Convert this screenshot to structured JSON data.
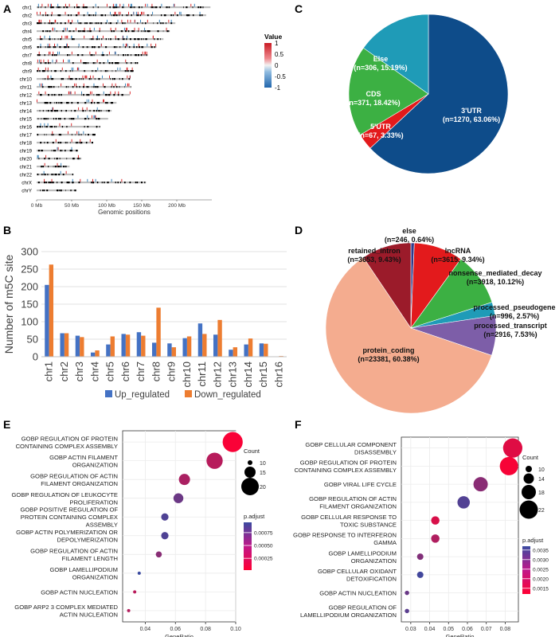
{
  "panels": {
    "a": "A",
    "b": "B",
    "c": "C",
    "d": "D",
    "e": "E",
    "f": "F"
  },
  "chart_data": [
    {
      "panel": "A",
      "type": "heatmap",
      "subtype": "chromosome_ideogram",
      "chromosomes": [
        "chr1",
        "chr2",
        "chr3",
        "chr4",
        "chr5",
        "chr6",
        "chr7",
        "chr8",
        "chr9",
        "chr10",
        "chr11",
        "chr12",
        "chr13",
        "chr14",
        "chr15",
        "chr16",
        "chr17",
        "chr18",
        "chr19",
        "chr20",
        "chr21",
        "chr22",
        "chrX",
        "chrY"
      ],
      "lengths_mb": [
        248,
        242,
        198,
        190,
        181,
        171,
        159,
        145,
        138,
        134,
        135,
        133,
        114,
        107,
        102,
        90,
        83,
        80,
        59,
        64,
        47,
        51,
        156,
        57
      ],
      "x_ticks": [
        "0 Mb",
        "50 Mb",
        "100 Mb",
        "150 Mb",
        "200 Mb"
      ],
      "x_tick_values": [
        0,
        50,
        100,
        150,
        200
      ],
      "xlim": [
        0,
        250
      ],
      "xlabel": "Genomic positions",
      "legend_title": "Value",
      "legend_ticks": [
        "1",
        "0.5",
        "0",
        "-0.5",
        "-1"
      ],
      "legend_tick_values": [
        1,
        0.5,
        0,
        -0.5,
        -1
      ],
      "colors": {
        "up": "#d7191c",
        "down": "#2c7bb6",
        "band": "#000000"
      }
    },
    {
      "panel": "B",
      "type": "bar",
      "categories": [
        "chr1",
        "chr2",
        "chr3",
        "chr4",
        "chr5",
        "chr6",
        "chr7",
        "chr8",
        "chr9",
        "chr10",
        "chr11",
        "chr12",
        "chr13",
        "chr14",
        "chr15",
        "chr16"
      ],
      "series": [
        {
          "name": "Up_regulated",
          "color": "#4472c4",
          "values": [
            205,
            67,
            60,
            12,
            35,
            65,
            70,
            40,
            38,
            53,
            95,
            63,
            20,
            35,
            38,
            0
          ]
        },
        {
          "name": "Down_regulated",
          "color": "#ed7d31",
          "values": [
            263,
            67,
            56,
            18,
            58,
            63,
            60,
            140,
            27,
            58,
            65,
            105,
            27,
            52,
            37,
            2
          ]
        }
      ],
      "ylabel": "Number of m5C site",
      "ylim": [
        0,
        300
      ],
      "yticks": [
        0,
        50,
        100,
        150,
        200,
        250,
        300
      ],
      "ytick_labels": [
        "0",
        "50",
        "100",
        "150",
        "200",
        "250",
        "300"
      ],
      "legend": "bottom"
    },
    {
      "panel": "C",
      "type": "pie",
      "slices": [
        {
          "label": "3'UTR",
          "count": "(n=1270, 63.06%)",
          "value": 63.06,
          "color": "#0e4c8a"
        },
        {
          "label": "5'UTR",
          "count": "(n=67, 3.33%)",
          "value": 3.33,
          "color": "#e31a1c"
        },
        {
          "label": "CDS",
          "count": "(n=371, 18.42%)",
          "value": 18.42,
          "color": "#3cb043"
        },
        {
          "label": "Else",
          "count": "(n=306, 15.19%)",
          "value": 15.19,
          "color": "#1f9bb7"
        }
      ]
    },
    {
      "panel": "D",
      "type": "pie",
      "slices": [
        {
          "label": "else",
          "count": "(n=246, 0.64%)",
          "value": 0.64,
          "color": "#2d3a8c"
        },
        {
          "label": "lncRNA",
          "count": "(n=3615, 9.34%)",
          "value": 9.34,
          "color": "#e31a1c"
        },
        {
          "label": "nonsense_mediated_decay",
          "count": "(n=3918, 10.12%)",
          "value": 10.12,
          "color": "#3cb043"
        },
        {
          "label": "processed_pseudogene",
          "count": "(n=996, 2.57%)",
          "value": 2.57,
          "color": "#1f9bb7"
        },
        {
          "label": "processed_transcript",
          "count": "(n=2916, 7.53%)",
          "value": 7.53,
          "color": "#7d5ea8"
        },
        {
          "label": "protein_coding",
          "count": "(n=23381, 60.38%)",
          "value": 60.38,
          "color": "#f4ac8f"
        },
        {
          "label": "retained_intron",
          "count": "(n=3653, 9.43%)",
          "value": 9.43,
          "color": "#9b1b2a"
        }
      ]
    },
    {
      "panel": "E",
      "type": "scatter",
      "subtype": "dotplot",
      "terms": [
        {
          "label": [
            "GOBP REGULATION OF PROTEIN",
            "CONTAINING COMPLEX ASSEMBLY"
          ],
          "ratio": 0.098,
          "count": 22,
          "padj": 5e-05
        },
        {
          "label": [
            "GOBP ACTIN FILAMENT",
            "ORGANIZATION"
          ],
          "ratio": 0.086,
          "count": 19,
          "padj": 0.00036
        },
        {
          "label": [
            "GOBP REGULATION OF ACTIN",
            "FILAMENT ORGANIZATION"
          ],
          "ratio": 0.066,
          "count": 15,
          "padj": 0.00042
        },
        {
          "label": [
            "GOBP REGULATION OF LEUKOCYTE",
            "PROLIFERATION"
          ],
          "ratio": 0.062,
          "count": 14,
          "padj": 0.00072
        },
        {
          "label": [
            "GOBP POSITIVE REGULATION OF",
            "PROTEIN CONTAINING COMPLEX",
            "ASSEMBLY"
          ],
          "ratio": 0.053,
          "count": 12,
          "padj": 0.00085
        },
        {
          "label": [
            "GOBP ACTIN POLYMERIZATION OR",
            "DEPOLYMERIZATION"
          ],
          "ratio": 0.053,
          "count": 12,
          "padj": 0.00085
        },
        {
          "label": [
            "GOBP REGULATION OF ACTIN",
            "FILAMENT LENGTH"
          ],
          "ratio": 0.049,
          "count": 11,
          "padj": 0.00058
        },
        {
          "label": [
            "GOBP LAMELLIPODIUM",
            "ORGANIZATION"
          ],
          "ratio": 0.036,
          "count": 8,
          "padj": 0.00095
        },
        {
          "label": [
            "GOBP ACTIN NUCLEATION"
          ],
          "ratio": 0.033,
          "count": 7,
          "padj": 0.00035
        },
        {
          "label": [
            "GOBP ARP2 3 COMPLEX MEDIATED",
            "ACTIN NUCLEATION"
          ],
          "ratio": 0.029,
          "count": 6,
          "padj": 0.00038
        }
      ],
      "xlabel": "GeneRatio",
      "xlim": [
        0.025,
        0.1
      ],
      "xticks": [
        0.04,
        0.06,
        0.08,
        0.1
      ],
      "xtick_labels": [
        "0.04",
        "0.06",
        "0.08",
        "0.10"
      ],
      "size_legend_title": "Count",
      "size_legend": [
        10,
        15,
        20
      ],
      "size_range": [
        6,
        22
      ],
      "color_legend_title": "p.adjust",
      "color_ticks": [
        "0.00075",
        "0.00050",
        "0.00025"
      ],
      "color_tick_values": [
        0.00075,
        0.0005,
        0.00025
      ],
      "color_range": [
        2e-05,
        0.00095
      ],
      "color_low": "#ff0033",
      "color_high": "#3a4aa0"
    },
    {
      "panel": "F",
      "type": "scatter",
      "subtype": "dotplot",
      "terms": [
        {
          "label": [
            "GOBP CELLULAR COMPONENT",
            "DISASSEMBLY"
          ],
          "ratio": 0.084,
          "count": 23,
          "padj": 0.0016
        },
        {
          "label": [
            "GOBP REGULATION OF PROTEIN",
            "CONTAINING COMPLEX ASSEMBLY"
          ],
          "ratio": 0.082,
          "count": 22,
          "padj": 0.0013
        },
        {
          "label": [
            "GOBP VIRAL LIFE CYCLE"
          ],
          "ratio": 0.067,
          "count": 18,
          "padj": 0.0027
        },
        {
          "label": [
            "GOBP REGULATION OF ACTIN",
            "FILAMENT ORGANIZATION"
          ],
          "ratio": 0.058,
          "count": 16,
          "padj": 0.0034
        },
        {
          "label": [
            "GOBP CELLULAR RESPONSE TO",
            "TOXIC SUBSTANCE"
          ],
          "ratio": 0.043,
          "count": 12,
          "padj": 0.0017
        },
        {
          "label": [
            "GOBP RESPONSE TO INTERFERON",
            "GAMMA"
          ],
          "ratio": 0.043,
          "count": 12,
          "padj": 0.0022
        },
        {
          "label": [
            "GOBP LAMELLIPODIUM",
            "ORGANIZATION"
          ],
          "ratio": 0.035,
          "count": 10,
          "padj": 0.0028
        },
        {
          "label": [
            "GOBP CELLULAR OXIDANT",
            "DETOXIFICATION"
          ],
          "ratio": 0.035,
          "count": 10,
          "padj": 0.0036
        },
        {
          "label": [
            "GOBP ACTIN NUCLEATION"
          ],
          "ratio": 0.028,
          "count": 8,
          "padj": 0.0031
        },
        {
          "label": [
            "GOBP REGULATION OF",
            "LAMELLIPODIUM ORGANIZATION"
          ],
          "ratio": 0.028,
          "count": 8,
          "padj": 0.0033
        }
      ],
      "xlabel": "GeneRatio",
      "xlim": [
        0.025,
        0.087
      ],
      "xticks": [
        0.03,
        0.04,
        0.05,
        0.06,
        0.07,
        0.08
      ],
      "xtick_labels": [
        "0.03",
        "0.04",
        "0.05",
        "0.06",
        "0.07",
        "0.08"
      ],
      "size_legend_title": "Count",
      "size_legend": [
        10,
        14,
        18,
        22
      ],
      "size_range": [
        8,
        23
      ],
      "color_legend_title": "p.adjust",
      "color_ticks": [
        "0.0035",
        "0.0030",
        "0.0025",
        "0.0020",
        "0.0015"
      ],
      "color_tick_values": [
        0.0035,
        0.003,
        0.0025,
        0.002,
        0.0015
      ],
      "color_range": [
        0.0012,
        0.0037
      ],
      "color_low": "#ff0033",
      "color_high": "#3a4aa0"
    }
  ]
}
